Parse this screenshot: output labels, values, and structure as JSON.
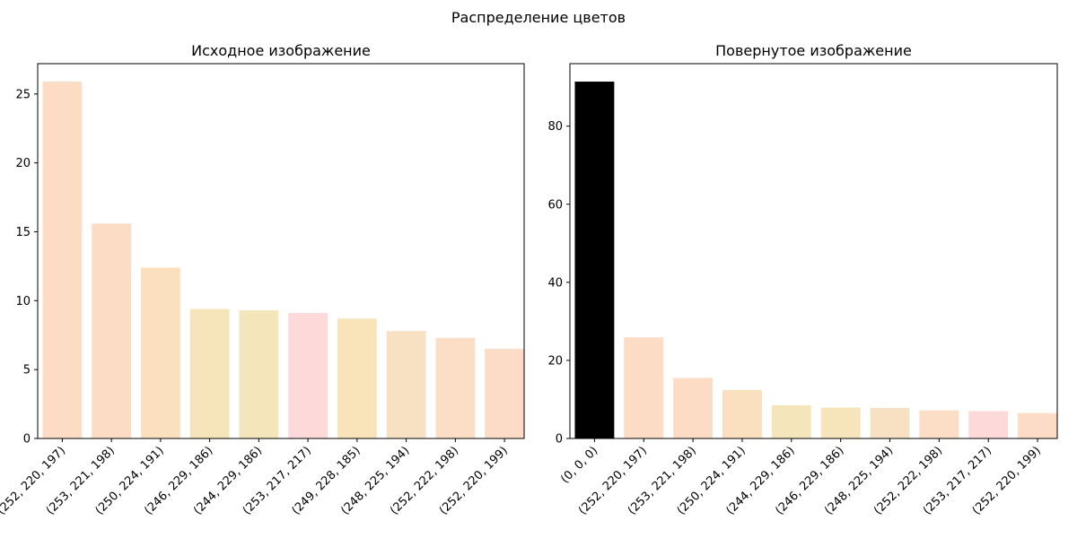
{
  "figure": {
    "suptitle": "Распределение цветов"
  },
  "chart_data": [
    {
      "type": "bar",
      "title": "Исходное изображение",
      "xlabel": "",
      "ylabel": "",
      "ylim": [
        0,
        27.2
      ],
      "yticks": [
        0,
        5,
        10,
        15,
        20,
        25
      ],
      "grid": false,
      "categories": [
        "(252, 220, 197)",
        "(253, 221, 198)",
        "(250, 224, 191)",
        "(246, 229, 186)",
        "(244, 229, 186)",
        "(253, 217, 217)",
        "(249, 228, 185)",
        "(248, 225, 194)",
        "(252, 222, 198)",
        "(252, 220, 199)"
      ],
      "values": [
        25.9,
        15.6,
        12.4,
        9.4,
        9.3,
        9.1,
        8.7,
        7.8,
        7.3,
        6.5
      ],
      "colors": [
        "#fcdcc5",
        "#fddcc6",
        "#fae0bf",
        "#f6e5ba",
        "#f4e5ba",
        "#fdd9d9",
        "#f9e4b9",
        "#f8e1c2",
        "#fcdec6",
        "#fcdcc7"
      ]
    },
    {
      "type": "bar",
      "title": "Повернутое изображение",
      "xlabel": "",
      "ylabel": "",
      "ylim": [
        0,
        96
      ],
      "yticks": [
        0,
        20,
        40,
        60,
        80
      ],
      "grid": false,
      "categories": [
        "(0, 0, 0)",
        "(252, 220, 197)",
        "(253, 221, 198)",
        "(250, 224, 191)",
        "(244, 229, 186)",
        "(246, 229, 186)",
        "(248, 225, 194)",
        "(252, 222, 198)",
        "(253, 217, 217)",
        "(252, 220, 199)"
      ],
      "values": [
        91.4,
        25.9,
        15.5,
        12.4,
        8.5,
        7.9,
        7.8,
        7.2,
        7.0,
        6.5
      ],
      "colors": [
        "#000000",
        "#fcdcc5",
        "#fddcc6",
        "#fae0bf",
        "#f4e5ba",
        "#f6e5ba",
        "#f8e1c2",
        "#fcdec6",
        "#fdd9d9",
        "#fcdcc7"
      ]
    }
  ]
}
